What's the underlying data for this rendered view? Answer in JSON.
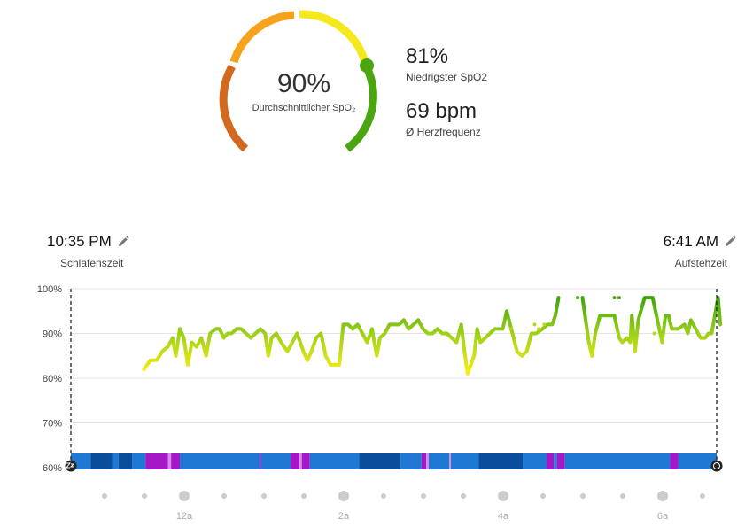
{
  "summary": {
    "avg_spo2_value": "90%",
    "avg_spo2_label": "Durchschnittlicher SpO₂",
    "lowest_spo2_value": "81%",
    "lowest_spo2_label": "Niedrigster SpO2",
    "heart_rate_value": "69 bpm",
    "heart_rate_label": "Ø Herzfrequenz"
  },
  "sleep": {
    "bedtime_value": "10:35 PM",
    "bedtime_label": "Schlafenszeit",
    "wake_value": "6:41 AM",
    "wake_label": "Aufstehzeit"
  },
  "colors": {
    "gauge_dark_orange": "#d2691e",
    "gauge_orange": "#f7a21b",
    "gauge_yellow": "#f5e81c",
    "gauge_green": "#4aa50f",
    "deep_sleep": "#0a4d9c",
    "light_sleep": "#1f78d1",
    "rem_sleep": "#a517c7",
    "awake": "#d58be6"
  },
  "chart_data": {
    "type": "line",
    "title": "",
    "xlabel": "",
    "ylabel": "",
    "ylim": [
      60,
      100
    ],
    "y_ticks": [
      "100%",
      "90%",
      "80%",
      "70%",
      "60%"
    ],
    "x_ticks": [
      "12a",
      "2a",
      "4a",
      "6a"
    ],
    "xlim_hours": [
      22.583,
      30.683
    ],
    "grid": true,
    "series": [
      {
        "values": [
          [
            23.5,
            82
          ],
          [
            23.58,
            84
          ],
          [
            23.66,
            84
          ],
          [
            23.73,
            86
          ],
          [
            23.8,
            87
          ],
          [
            23.86,
            89
          ],
          [
            23.9,
            85
          ],
          [
            23.95,
            91
          ],
          [
            24.0,
            89
          ],
          [
            24.05,
            83
          ],
          [
            24.1,
            88
          ],
          [
            24.16,
            87
          ],
          [
            24.22,
            89
          ],
          [
            24.28,
            85
          ],
          [
            24.33,
            90
          ],
          [
            24.4,
            91
          ],
          [
            24.45,
            91
          ],
          [
            24.5,
            89
          ],
          [
            24.55,
            90
          ],
          [
            24.6,
            90
          ],
          [
            24.66,
            91
          ],
          [
            24.72,
            91
          ],
          [
            24.78,
            90
          ],
          [
            24.84,
            89
          ],
          [
            24.9,
            90
          ],
          [
            24.96,
            91
          ],
          [
            25.02,
            90
          ],
          [
            25.06,
            85
          ],
          [
            25.1,
            89
          ],
          [
            25.16,
            90
          ],
          [
            25.22,
            88
          ],
          [
            25.3,
            86
          ],
          [
            25.36,
            88
          ],
          [
            25.42,
            90
          ],
          [
            25.5,
            86
          ],
          [
            25.55,
            84
          ],
          [
            25.6,
            86
          ],
          [
            25.66,
            89
          ],
          [
            25.72,
            90
          ],
          [
            25.78,
            85
          ],
          [
            25.84,
            83
          ],
          [
            25.9,
            83
          ],
          [
            25.95,
            83
          ],
          [
            26.0,
            92
          ],
          [
            26.06,
            92
          ],
          [
            26.12,
            91
          ],
          [
            26.18,
            92
          ],
          [
            26.24,
            90
          ],
          [
            26.3,
            88
          ],
          [
            26.36,
            91
          ],
          [
            26.42,
            85
          ],
          [
            26.46,
            89
          ],
          [
            26.52,
            90
          ],
          [
            26.58,
            92
          ],
          [
            26.64,
            92
          ],
          [
            26.7,
            92
          ],
          [
            26.76,
            93
          ],
          [
            26.82,
            91
          ],
          [
            26.88,
            92
          ],
          [
            26.94,
            93
          ],
          [
            27.0,
            91
          ],
          [
            27.06,
            90
          ],
          [
            27.12,
            90
          ],
          [
            27.18,
            91
          ],
          [
            27.24,
            90
          ],
          [
            27.3,
            90
          ],
          [
            27.36,
            89
          ],
          [
            27.42,
            88
          ],
          [
            27.48,
            92
          ],
          [
            27.52,
            86
          ],
          [
            27.56,
            81
          ],
          [
            27.6,
            83
          ],
          [
            27.64,
            85
          ],
          [
            27.68,
            91
          ],
          [
            27.72,
            88
          ],
          [
            27.78,
            89
          ],
          [
            27.84,
            90
          ],
          [
            27.9,
            91
          ],
          [
            27.96,
            91
          ],
          [
            28.0,
            91
          ],
          [
            28.05,
            95
          ],
          [
            28.18,
            86
          ],
          [
            28.24,
            85
          ],
          [
            28.3,
            86
          ],
          [
            28.36,
            90
          ],
          [
            28.42,
            90
          ],
          [
            28.5,
            91
          ],
          [
            28.56,
            92
          ],
          [
            28.62,
            92
          ],
          [
            28.66,
            94
          ],
          [
            28.7,
            98
          ],
          [
            29.0,
            98
          ],
          [
            29.04,
            93
          ],
          [
            29.08,
            88
          ],
          [
            29.12,
            85
          ],
          [
            29.16,
            90
          ],
          [
            29.22,
            94
          ],
          [
            29.28,
            94
          ],
          [
            29.34,
            94
          ],
          [
            29.4,
            94
          ],
          [
            29.46,
            89
          ],
          [
            29.5,
            88
          ],
          [
            29.56,
            89
          ],
          [
            29.6,
            88
          ],
          [
            29.62,
            94
          ],
          [
            29.66,
            86
          ],
          [
            29.7,
            93
          ],
          [
            29.78,
            98
          ],
          [
            29.88,
            98
          ],
          [
            30.0,
            88
          ],
          [
            30.04,
            94
          ],
          [
            30.08,
            94
          ],
          [
            30.12,
            91
          ],
          [
            30.2,
            91
          ],
          [
            30.28,
            92
          ],
          [
            30.32,
            90
          ],
          [
            30.36,
            93
          ],
          [
            30.42,
            91
          ],
          [
            30.48,
            89
          ],
          [
            30.54,
            89
          ],
          [
            30.58,
            90
          ],
          [
            30.62,
            90
          ],
          [
            30.66,
            94
          ],
          [
            30.7,
            98
          ],
          [
            30.73,
            92
          ]
        ]
      }
    ],
    "sleep_stages": [
      [
        "light",
        22.583,
        22.83
      ],
      [
        "deep",
        22.83,
        23.1
      ],
      [
        "light",
        23.1,
        23.18
      ],
      [
        "deep",
        23.18,
        23.35
      ],
      [
        "light",
        23.35,
        23.52
      ],
      [
        "rem",
        23.52,
        23.8
      ],
      [
        "awake",
        23.8,
        23.84
      ],
      [
        "rem",
        23.84,
        23.95
      ],
      [
        "light",
        23.95,
        24.95
      ],
      [
        "rem",
        24.95,
        24.97
      ],
      [
        "light",
        24.97,
        25.34
      ],
      [
        "rem",
        25.34,
        25.45
      ],
      [
        "awake",
        25.45,
        25.48
      ],
      [
        "rem",
        25.48,
        25.58
      ],
      [
        "light",
        25.58,
        26.2
      ],
      [
        "deep",
        26.2,
        26.72
      ],
      [
        "light",
        26.72,
        26.98
      ],
      [
        "rem",
        26.98,
        27.04
      ],
      [
        "awake",
        27.04,
        27.07
      ],
      [
        "light",
        27.07,
        27.33
      ],
      [
        "awake",
        27.33,
        27.35
      ],
      [
        "light",
        27.35,
        27.7
      ],
      [
        "deep",
        27.7,
        28.25
      ],
      [
        "light",
        28.25,
        28.55
      ],
      [
        "rem",
        28.55,
        28.64
      ],
      [
        "light",
        28.64,
        28.68
      ],
      [
        "rem",
        28.68,
        28.78
      ],
      [
        "light",
        28.78,
        30.1
      ],
      [
        "rem",
        30.1,
        30.2
      ],
      [
        "light",
        30.2,
        30.683
      ]
    ]
  }
}
